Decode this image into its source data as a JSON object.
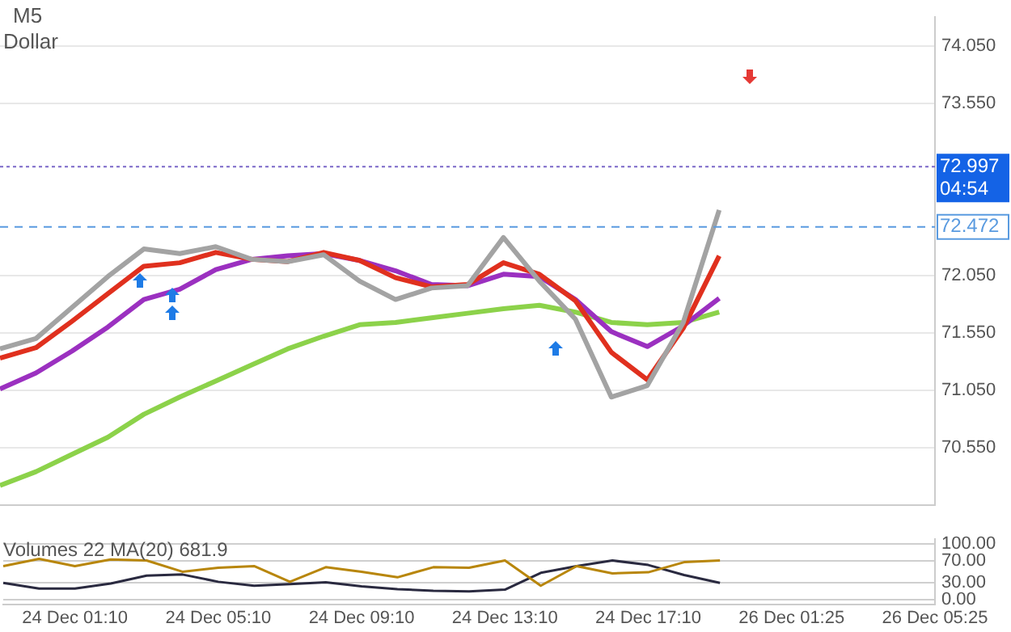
{
  "chart_data": [
    {
      "type": "line",
      "title": "M5",
      "subtitle": "Dollar",
      "marker": "none",
      "grid": "y",
      "legend": false,
      "tick_labels": "y",
      "categories": [
        null,
        null,
        null,
        null,
        null,
        null,
        null,
        null,
        null,
        null,
        null,
        null,
        null,
        null,
        null,
        null,
        null,
        null,
        null,
        null,
        null,
        null,
        null,
        null,
        null,
        null,
        null
      ],
      "series": [
        {
          "color": "#a3a3a3",
          "values": [
            71.41,
            71.5,
            71.77,
            72.04,
            72.28,
            72.24,
            72.3,
            72.19,
            72.17,
            72.23,
            72.0,
            71.84,
            71.94,
            71.96,
            72.38,
            72.0,
            71.67,
            70.99,
            71.09,
            71.64,
            72.62,
            null,
            null,
            null,
            null,
            null,
            null
          ]
        },
        {
          "color": "#e0301e",
          "values": [
            71.33,
            71.42,
            71.65,
            71.89,
            72.13,
            72.16,
            72.25,
            72.19,
            72.17,
            72.25,
            72.18,
            72.03,
            71.95,
            71.97,
            72.16,
            72.06,
            71.83,
            71.38,
            71.14,
            71.59,
            72.22,
            null,
            null,
            null,
            null,
            null,
            null
          ]
        },
        {
          "color": "#9b30c0",
          "values": [
            71.06,
            71.2,
            71.39,
            71.6,
            71.84,
            71.93,
            72.1,
            72.19,
            72.22,
            72.24,
            72.18,
            72.09,
            71.97,
            71.96,
            72.06,
            72.04,
            71.84,
            71.56,
            71.43,
            71.61,
            71.85,
            null,
            null,
            null,
            null,
            null,
            null
          ]
        },
        {
          "color": "#8cd24a",
          "values": [
            70.22,
            70.34,
            70.49,
            70.64,
            70.84,
            70.99,
            71.13,
            71.27,
            71.41,
            71.52,
            71.62,
            71.64,
            71.68,
            71.72,
            71.76,
            71.79,
            71.73,
            71.64,
            71.62,
            71.64,
            71.73,
            null,
            null,
            null,
            null,
            null,
            null
          ]
        }
      ],
      "ylim": [
        70.05,
        74.3
      ],
      "yticks": [
        {
          "value": 70.55,
          "label": "70.550"
        },
        {
          "value": 71.05,
          "label": "71.050"
        },
        {
          "value": 71.55,
          "label": "71.550"
        },
        {
          "value": 72.05,
          "label": "72.050"
        },
        {
          "value": 73.55,
          "label": "73.550"
        },
        {
          "value": 74.05,
          "label": "74.050"
        }
      ],
      "ref_lines": [
        {
          "axis": "y",
          "value": 72.997,
          "label": "72.997",
          "color": "#7b68c8",
          "line_style": "dotted"
        },
        {
          "axis": "y",
          "value": 72.472,
          "label": "72.472",
          "color": "#5a9be0",
          "line_style": "dashed"
        }
      ],
      "annotations": [
        "04:54"
      ]
    },
    {
      "type": "line",
      "title": "Volumes 22 MA(20) 681.9",
      "marker": "none",
      "grid": "y",
      "legend": false,
      "categories": [
        null,
        null,
        "24 Dec 01:10",
        null,
        null,
        null,
        "24 Dec 05:10",
        null,
        null,
        null,
        "24 Dec 09:10",
        null,
        null,
        null,
        "24 Dec 13:10",
        null,
        null,
        null,
        "24 Dec 17:10",
        null,
        null,
        null,
        "26 Dec 01:25",
        null,
        null,
        null,
        "26 Dec 05:25"
      ],
      "series": [
        {
          "color": "#b8860b",
          "values": [
            60,
            73,
            60,
            72,
            70,
            50,
            57,
            60,
            32,
            58,
            50,
            40,
            58,
            57,
            70,
            25,
            60,
            47,
            49,
            67,
            70,
            null,
            null,
            null,
            null,
            null,
            null
          ]
        },
        {
          "color": "#2a2a40",
          "values": [
            30,
            20,
            20,
            29,
            43,
            45,
            32,
            25,
            28,
            31,
            24,
            19,
            16,
            15,
            18,
            48,
            60,
            70,
            62,
            44,
            30,
            null,
            null,
            null,
            null,
            null,
            null
          ]
        }
      ],
      "ylim": [
        -8,
        108
      ],
      "yticks": [
        {
          "value": 0,
          "label": "0.00"
        },
        {
          "value": 30,
          "label": "30.00"
        },
        {
          "value": 70,
          "label": "70.00"
        },
        {
          "value": 100,
          "label": "100.00"
        }
      ]
    }
  ]
}
